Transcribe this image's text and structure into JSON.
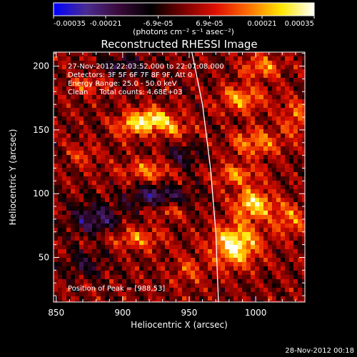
{
  "colorbar": {
    "ticks": [
      "-0.00035",
      "-0.00021",
      "-6.9e-05",
      "6.9e-05",
      "0.00021",
      "0.00035"
    ],
    "unit_label": "(photons cm⁻² s⁻¹ asec⁻²)",
    "vmin": -0.00035,
    "vmax": 0.00035
  },
  "annotations": {
    "time_range": "27-Nov-2012 22:03:52.000 to 22:07:08.000",
    "detectors": "Detectors: 3F 5F 6F 7F 8F 9F, Att 0",
    "energy": "Energy Range: 25.0 - 50.0 keV",
    "clean": "Clean     Total counts: 4.68E+03",
    "peak": "Position of Peak = [988,53]",
    "footer_date": "28-Nov-2012 00:18"
  },
  "chart_data": {
    "type": "heatmap",
    "title": "Reconstructed RHESSI Image",
    "xlabel": "Heliocentric X (arcsec)",
    "ylabel": "Heliocentric Y (arcsec)",
    "xlim": [
      848,
      1037
    ],
    "ylim": [
      15,
      211
    ],
    "x_ticks": [
      850,
      900,
      950,
      1000
    ],
    "y_ticks": [
      50,
      100,
      150,
      200
    ],
    "colormap": [
      "#0000ff",
      "#4a2c92",
      "#3a0a3a",
      "#000000",
      "#7a0000",
      "#e01000",
      "#ff7000",
      "#ffe800",
      "#ffffff"
    ],
    "peak_position": [
      988,
      53
    ],
    "limb_arc": [
      [
        952,
        211
      ],
      [
        960,
        170
      ],
      [
        966,
        120
      ],
      [
        970,
        70
      ],
      [
        972,
        15
      ]
    ],
    "sources": [
      {
        "x": 922,
        "y": 158,
        "a": 0.0003,
        "sx": 10,
        "sy": 6
      },
      {
        "x": 905,
        "y": 153,
        "a": 0.00018,
        "sx": 9,
        "sy": 6
      },
      {
        "x": 940,
        "y": 150,
        "a": 0.00016,
        "sx": 8,
        "sy": 5
      },
      {
        "x": 985,
        "y": 60,
        "a": 0.00033,
        "sx": 12,
        "sy": 11
      },
      {
        "x": 998,
        "y": 92,
        "a": 0.00028,
        "sx": 10,
        "sy": 8
      },
      {
        "x": 985,
        "y": 115,
        "a": 0.00018,
        "sx": 12,
        "sy": 6
      },
      {
        "x": 1000,
        "y": 140,
        "a": 0.0002,
        "sx": 12,
        "sy": 7
      },
      {
        "x": 990,
        "y": 175,
        "a": 0.0002,
        "sx": 12,
        "sy": 7
      },
      {
        "x": 1005,
        "y": 200,
        "a": 0.00018,
        "sx": 10,
        "sy": 6
      },
      {
        "x": 1025,
        "y": 80,
        "a": 0.00016,
        "sx": 9,
        "sy": 9
      },
      {
        "x": 1030,
        "y": 160,
        "a": 0.00015,
        "sx": 8,
        "sy": 10
      },
      {
        "x": 920,
        "y": 118,
        "a": 0.00017,
        "sx": 15,
        "sy": 6
      },
      {
        "x": 910,
        "y": 65,
        "a": 0.00016,
        "sx": 14,
        "sy": 6
      },
      {
        "x": 935,
        "y": 88,
        "a": 0.00013,
        "sx": 10,
        "sy": 5
      },
      {
        "x": 950,
        "y": 40,
        "a": 0.00012,
        "sx": 8,
        "sy": 8
      },
      {
        "x": 875,
        "y": 185,
        "a": 0.00012,
        "sx": 10,
        "sy": 6
      },
      {
        "x": 870,
        "y": 130,
        "a": 0.0001,
        "sx": 8,
        "sy": 6
      },
      {
        "x": 928,
        "y": 98,
        "a": -0.00022,
        "sx": 16,
        "sy": 6
      },
      {
        "x": 880,
        "y": 80,
        "a": -0.0002,
        "sx": 14,
        "sy": 8
      },
      {
        "x": 900,
        "y": 200,
        "a": -0.00014,
        "sx": 14,
        "sy": 6
      },
      {
        "x": 945,
        "y": 128,
        "a": -0.00013,
        "sx": 10,
        "sy": 8
      },
      {
        "x": 870,
        "y": 45,
        "a": -0.00012,
        "sx": 12,
        "sy": 7
      }
    ]
  }
}
